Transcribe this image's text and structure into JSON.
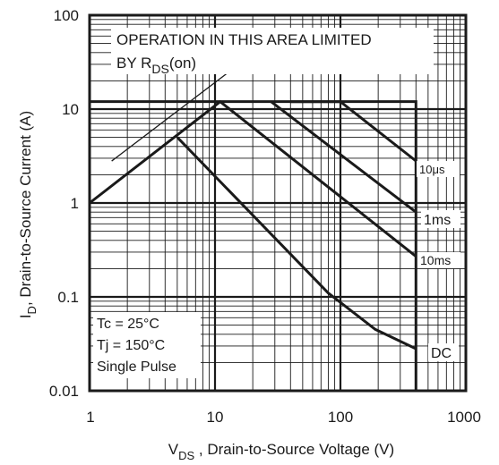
{
  "chart_data": {
    "type": "line",
    "x_scale": "log",
    "y_scale": "log",
    "xlim": [
      1,
      1000
    ],
    "ylim": [
      0.01,
      100
    ],
    "grid": true,
    "x_ticks": [
      "1",
      "10",
      "100",
      "1000"
    ],
    "y_ticks": [
      "100",
      "10",
      "1",
      "0.1",
      "0.01"
    ],
    "x_tick_values": [
      1,
      10,
      100,
      1000
    ],
    "y_tick_values": [
      100,
      10,
      1,
      0.1,
      0.01
    ],
    "xlabel": {
      "main": "V",
      "sub": "DS",
      "rest": " , Drain-to-Source Voltage (V)"
    },
    "ylabel": {
      "main": "I",
      "sub": "D",
      "rest": ",  Drain-to-Source Current (A)"
    },
    "annotation_top": {
      "line1": "OPERATION IN THIS AREA LIMITED",
      "line2_main": "BY R",
      "line2_sub": "DS",
      "line2_rest": "(on)"
    },
    "annotation_conditions": [
      "Tc = 25°C",
      "Tj = 150°C",
      "Single Pulse"
    ],
    "limit_box": {
      "current_limit": 12,
      "voltage_limit": 400
    },
    "rds_on_line": [
      [
        1.5,
        2.8
      ],
      [
        14.5,
        28
      ]
    ],
    "series": [
      {
        "name": "10μs",
        "x": [
          40,
          100,
          400
        ],
        "y": [
          12,
          12,
          2.8
        ]
      },
      {
        "name": "1ms",
        "x": [
          28,
          400
        ],
        "y": [
          12,
          0.8
        ]
      },
      {
        "name": "10ms",
        "x": [
          1,
          11,
          400
        ],
        "y": [
          1,
          12,
          0.27
        ]
      },
      {
        "name": "DC",
        "x": [
          5,
          80,
          190,
          400
        ],
        "y": [
          5,
          0.11,
          0.045,
          0.028
        ]
      }
    ]
  }
}
